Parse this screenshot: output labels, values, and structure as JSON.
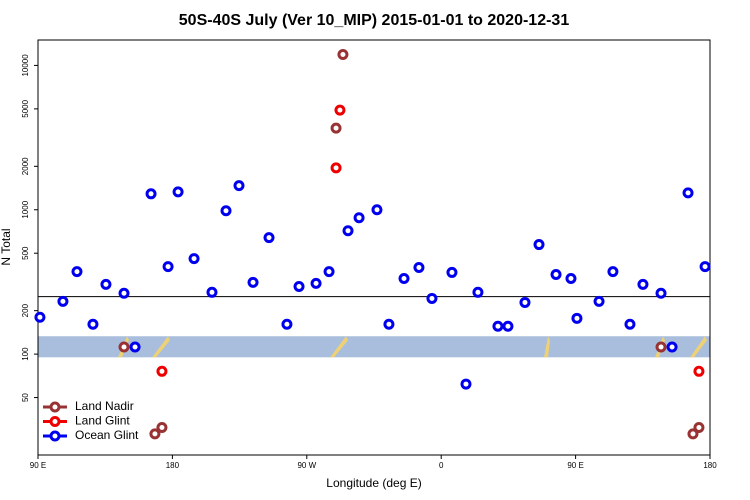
{
  "chart_data": {
    "type": "scatter",
    "title": "50S-40S July (Ver 10_MIP)   2015-01-01 to 2020-12-31",
    "x_label": "Longitude (deg E)",
    "y_label": "N Total",
    "log_y": true,
    "xlim": [
      90,
      540
    ],
    "ylim": [
      20,
      15000
    ],
    "xticks": [
      {
        "value": 90,
        "label": "90 E"
      },
      180,
      {
        "value": 270,
        "label": "90 W"
      },
      {
        "value": 360,
        "label": "0"
      },
      {
        "value": 450,
        "label": "90 E"
      },
      {
        "value": 540,
        "label": "180"
      }
    ],
    "yticks": [
      50,
      100,
      200,
      500,
      1000,
      2000,
      5000,
      10000
    ],
    "hline": 250,
    "band": [
      95,
      133
    ],
    "legend": "lower left",
    "series": [
      {
        "name": "Land Nadir",
        "color": "#993333",
        "x": [
          147.6,
          168.3,
          173,
          289.6,
          294.2,
          507.2,
          528.6,
          532.6
        ],
        "values": [
          112,
          28,
          31,
          3680,
          11900,
          112,
          28,
          31
        ]
      },
      {
        "name": "Land Glint",
        "color": "#ee0000",
        "x": [
          173,
          289.6,
          292.2,
          532.6
        ],
        "values": [
          76,
          1950,
          4900,
          76
        ]
      },
      {
        "name": "Ocean Glint",
        "color": "#0000ee",
        "x": [
          91.3,
          106.7,
          116.1,
          126.8,
          135.5,
          147.6,
          155,
          165.7,
          177.1,
          183.8,
          194.5,
          206.5,
          215.9,
          224.6,
          234,
          244.7,
          256.7,
          264.8,
          276.2,
          284.9,
          297.6,
          305,
          317,
          325,
          335.1,
          345.1,
          353.8,
          367.2,
          376.6,
          384.6,
          398,
          404.7,
          416.1,
          425.5,
          436.9,
          446.9,
          450.9,
          465.7,
          475,
          486.4,
          495.1,
          507.2,
          514.6,
          525.3,
          536.7
        ],
        "values": [
          180,
          232,
          373,
          161,
          304,
          264,
          112,
          1290,
          404,
          1330,
          459,
          268,
          985,
          1470,
          314,
          641,
          161,
          294,
          309,
          373,
          716,
          881,
          1000,
          161,
          334,
          398,
          243,
          368,
          62,
          268,
          156,
          156,
          228,
          574,
          356,
          334,
          177,
          232,
          373,
          161,
          304,
          264,
          112,
          1310,
          404
        ]
      }
    ]
  }
}
